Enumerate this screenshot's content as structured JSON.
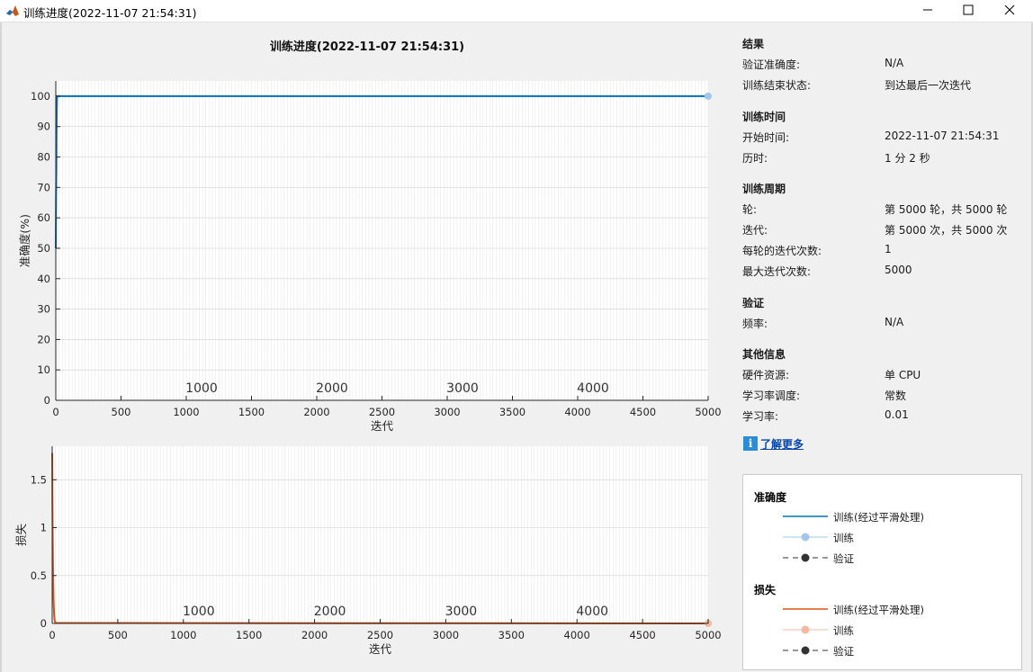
{
  "window": {
    "title": "训练进度(2022-11-07 21:54:31)",
    "icon": "matlab-logo-icon"
  },
  "figure_title": "训练进度(2022-11-07 21:54:31)",
  "panel": {
    "results": {
      "heading": "结果",
      "rows": [
        {
          "label": "验证准确度:",
          "value": "N/A"
        },
        {
          "label": "训练结束状态:",
          "value": "到达最后一次迭代"
        }
      ]
    },
    "time": {
      "heading": "训练时间",
      "rows": [
        {
          "label": "开始时间:",
          "value": "2022-11-07 21:54:31"
        },
        {
          "label": "历时:",
          "value": "1 分 2 秒"
        }
      ]
    },
    "cycle": {
      "heading": "训练周期",
      "rows": [
        {
          "label": "轮:",
          "value": "第 5000 轮，共 5000 轮"
        },
        {
          "label": "迭代:",
          "value": "第 5000 次，共 5000 次"
        },
        {
          "label": "每轮的迭代次数:",
          "value": "1"
        },
        {
          "label": "最大迭代次数:",
          "value": "5000"
        }
      ]
    },
    "validation": {
      "heading": "验证",
      "rows": [
        {
          "label": "频率:",
          "value": "N/A"
        }
      ]
    },
    "other": {
      "heading": "其他信息",
      "rows": [
        {
          "label": "硬件资源:",
          "value": "单 CPU"
        },
        {
          "label": "学习率调度:",
          "value": "常数"
        },
        {
          "label": "学习率:",
          "value": "0.01"
        }
      ]
    },
    "learn_more": "了解更多"
  },
  "legend": {
    "accuracy": {
      "title": "准确度",
      "items": [
        "训练(经过平滑处理)",
        "训练",
        "验证"
      ]
    },
    "loss": {
      "title": "损失",
      "items": [
        "训练(经过平滑处理)",
        "训练",
        "验证"
      ]
    }
  },
  "chart_data": [
    {
      "type": "line",
      "xlabel": "迭代",
      "ylabel": "准确度(%)",
      "xlim": [
        0,
        5000
      ],
      "ylim": [
        0,
        105
      ],
      "xticks": [
        0,
        500,
        1000,
        1500,
        2000,
        2500,
        3000,
        3500,
        4000,
        4500,
        5000
      ],
      "yticks": [
        0,
        10,
        20,
        30,
        40,
        50,
        60,
        70,
        80,
        90,
        100
      ],
      "epoch_labels": [
        {
          "x": 1000,
          "label": "1000"
        },
        {
          "x": 2000,
          "label": "2000"
        },
        {
          "x": 3000,
          "label": "3000"
        },
        {
          "x": 4000,
          "label": "4000"
        }
      ],
      "grid": true,
      "series": [
        {
          "name": "训练(经过平滑处理)",
          "color": "#0072bd",
          "x": [
            0,
            2,
            4,
            6,
            8,
            10,
            5000
          ],
          "y": [
            50,
            67,
            75,
            90,
            98,
            100,
            100
          ]
        },
        {
          "name": "训练",
          "color": "#a2c7e8",
          "x": [
            5000
          ],
          "y": [
            100
          ]
        }
      ]
    },
    {
      "type": "line",
      "xlabel": "迭代",
      "ylabel": "损失",
      "xlim": [
        0,
        5000
      ],
      "ylim": [
        0,
        1.85
      ],
      "xticks": [
        0,
        500,
        1000,
        1500,
        2000,
        2500,
        3000,
        3500,
        4000,
        4500,
        5000
      ],
      "yticks": [
        0,
        0.5,
        1,
        1.5
      ],
      "epoch_labels": [
        {
          "x": 1000,
          "label": "1000"
        },
        {
          "x": 2000,
          "label": "2000"
        },
        {
          "x": 3000,
          "label": "3000"
        },
        {
          "x": 4000,
          "label": "4000"
        }
      ],
      "grid": true,
      "series": [
        {
          "name": "训练(经过平滑处理)",
          "color": "#d95319",
          "x": [
            0,
            3,
            6,
            10,
            15,
            20,
            30,
            5000
          ],
          "y": [
            1.78,
            1.1,
            0.6,
            0.25,
            0.08,
            0.02,
            0.005,
            0.0
          ]
        },
        {
          "name": "训练",
          "color": "#f2b8a0",
          "x": [
            5000
          ],
          "y": [
            0
          ]
        }
      ]
    }
  ]
}
